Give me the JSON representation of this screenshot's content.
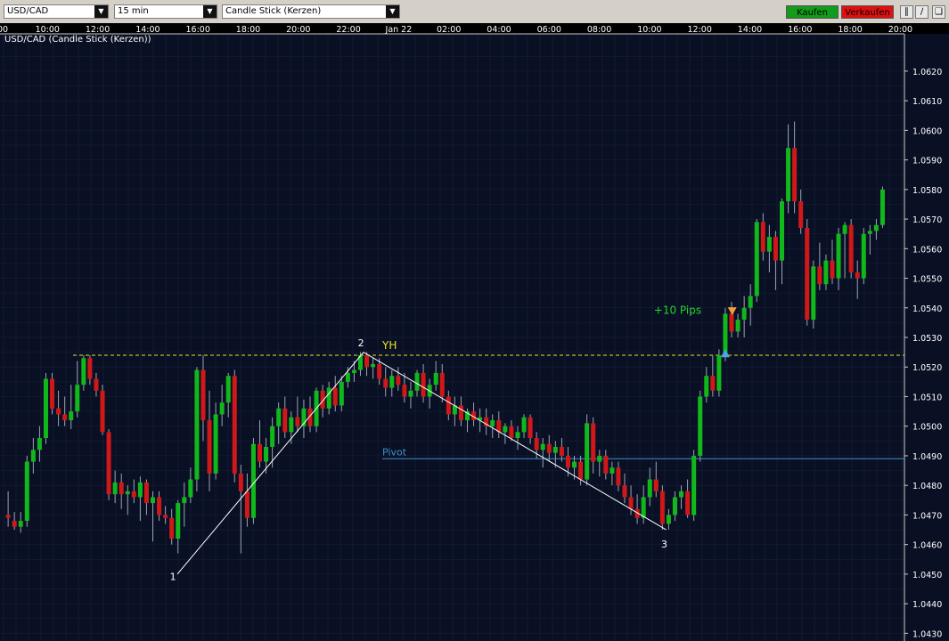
{
  "toolbar": {
    "symbol": "USD/CAD",
    "timeframe": "15 min",
    "chart_type": "Candle Stick (Kerzen)",
    "buy_label": "Kaufen",
    "sell_label": "Verkaufen"
  },
  "chart_title": "USD/CAD (Candle Stick (Kerzen))",
  "colors": {
    "background": "#0a1024",
    "grid": "#24304f",
    "up": "#11b81b",
    "down": "#d01818",
    "yh": "#e6e61e",
    "pivot": "#3c8fc8"
  },
  "chart_data": {
    "type": "candlestick",
    "symbol": "USD/CAD",
    "interval": "15 min",
    "x_ticks": [
      "00",
      "10:00",
      "12:00",
      "14:00",
      "16:00",
      "18:00",
      "20:00",
      "22:00",
      "Jan 22",
      "02:00",
      "04:00",
      "06:00",
      "08:00",
      "10:00",
      "12:00",
      "14:00",
      "16:00",
      "18:00",
      "20:00"
    ],
    "y_ticks": [
      "1.0620",
      "1.0610",
      "1.0600",
      "1.0590",
      "1.0580",
      "1.0570",
      "1.0560",
      "1.0550",
      "1.0540",
      "1.0530",
      "1.0520",
      "1.0510",
      "1.0500",
      "1.0490",
      "1.0480",
      "1.0470",
      "1.0460",
      "1.0450",
      "1.0440",
      "1.0430"
    ],
    "ylim": [
      1.0428,
      1.0629
    ],
    "levels": [
      {
        "name": "YH",
        "value": 1.0524,
        "style": "dashed"
      },
      {
        "name": "Pivot",
        "value": 1.0489,
        "style": "solid"
      }
    ],
    "annotations": [
      {
        "text": "1",
        "x": 26.5,
        "y": 1.0448
      },
      {
        "text": "2",
        "x": 56.4,
        "y": 1.0527
      },
      {
        "text": "3",
        "x": 104.6,
        "y": 1.0459
      },
      {
        "text": "+10 Pips",
        "x": 110.5,
        "y": 1.0538
      }
    ],
    "trendlines": [
      {
        "x1": 27.2,
        "y1": 1.045,
        "x2": 56.8,
        "y2": 1.0525
      },
      {
        "x1": 56.8,
        "y1": 1.0525,
        "x2": 104.9,
        "y2": 1.0465
      }
    ],
    "signals": [
      {
        "type": "buy-arrow",
        "x": 114.3,
        "y": 1.05245
      },
      {
        "type": "sell-arrow",
        "x": 115.4,
        "y": 1.0539
      }
    ],
    "candles": [
      {
        "x": 0.3,
        "o": 1.047,
        "h": 1.0478,
        "l": 1.0466,
        "c": 1.0469
      },
      {
        "x": 1.3,
        "o": 1.0468,
        "h": 1.0471,
        "l": 1.0465,
        "c": 1.0466
      },
      {
        "x": 2.3,
        "o": 1.0466,
        "h": 1.0471,
        "l": 1.0464,
        "c": 1.0468
      },
      {
        "x": 3.3,
        "o": 1.0468,
        "h": 1.049,
        "l": 1.0466,
        "c": 1.0488
      },
      {
        "x": 4.3,
        "o": 1.0488,
        "h": 1.0496,
        "l": 1.0484,
        "c": 1.0492
      },
      {
        "x": 5.3,
        "o": 1.0492,
        "h": 1.05,
        "l": 1.0488,
        "c": 1.0496
      },
      {
        "x": 6.3,
        "o": 1.0496,
        "h": 1.0518,
        "l": 1.0494,
        "c": 1.0516
      },
      {
        "x": 7.3,
        "o": 1.0516,
        "h": 1.0518,
        "l": 1.0504,
        "c": 1.0506
      },
      {
        "x": 8.3,
        "o": 1.0506,
        "h": 1.0512,
        "l": 1.05,
        "c": 1.0504
      },
      {
        "x": 9.3,
        "o": 1.0504,
        "h": 1.051,
        "l": 1.05,
        "c": 1.0502
      },
      {
        "x": 10.3,
        "o": 1.0502,
        "h": 1.0514,
        "l": 1.0499,
        "c": 1.0505
      },
      {
        "x": 11.3,
        "o": 1.0505,
        "h": 1.0522,
        "l": 1.0503,
        "c": 1.0514
      },
      {
        "x": 12.3,
        "o": 1.0514,
        "h": 1.0524,
        "l": 1.0512,
        "c": 1.0523
      },
      {
        "x": 13.3,
        "o": 1.0523,
        "h": 1.0524,
        "l": 1.0514,
        "c": 1.0516
      },
      {
        "x": 14.3,
        "o": 1.0516,
        "h": 1.0518,
        "l": 1.051,
        "c": 1.0512
      },
      {
        "x": 15.3,
        "o": 1.0512,
        "h": 1.0514,
        "l": 1.0497,
        "c": 1.0498
      },
      {
        "x": 16.3,
        "o": 1.0498,
        "h": 1.0499,
        "l": 1.0475,
        "c": 1.0477
      },
      {
        "x": 17.3,
        "o": 1.0477,
        "h": 1.0485,
        "l": 1.0474,
        "c": 1.0481
      },
      {
        "x": 18.3,
        "o": 1.0481,
        "h": 1.0484,
        "l": 1.0472,
        "c": 1.0477
      },
      {
        "x": 19.3,
        "o": 1.0477,
        "h": 1.048,
        "l": 1.047,
        "c": 1.0478
      },
      {
        "x": 20.3,
        "o": 1.0478,
        "h": 1.0482,
        "l": 1.0474,
        "c": 1.0476
      },
      {
        "x": 21.3,
        "o": 1.0476,
        "h": 1.0483,
        "l": 1.0468,
        "c": 1.0481
      },
      {
        "x": 22.3,
        "o": 1.0481,
        "h": 1.0482,
        "l": 1.047,
        "c": 1.0474
      },
      {
        "x": 23.3,
        "o": 1.0474,
        "h": 1.0478,
        "l": 1.0461,
        "c": 1.0476
      },
      {
        "x": 24.3,
        "o": 1.0476,
        "h": 1.0478,
        "l": 1.0468,
        "c": 1.047
      },
      {
        "x": 25.3,
        "o": 1.047,
        "h": 1.0473,
        "l": 1.0467,
        "c": 1.0469
      },
      {
        "x": 26.3,
        "o": 1.0469,
        "h": 1.0472,
        "l": 1.046,
        "c": 1.0462
      },
      {
        "x": 27.3,
        "o": 1.0462,
        "h": 1.0475,
        "l": 1.0457,
        "c": 1.0474
      },
      {
        "x": 28.3,
        "o": 1.0474,
        "h": 1.0481,
        "l": 1.0466,
        "c": 1.0476
      },
      {
        "x": 29.3,
        "o": 1.0476,
        "h": 1.0486,
        "l": 1.0474,
        "c": 1.0482
      },
      {
        "x": 30.3,
        "o": 1.0482,
        "h": 1.052,
        "l": 1.0478,
        "c": 1.0519
      },
      {
        "x": 31.3,
        "o": 1.0519,
        "h": 1.0524,
        "l": 1.0495,
        "c": 1.0502
      },
      {
        "x": 32.3,
        "o": 1.0502,
        "h": 1.0512,
        "l": 1.0478,
        "c": 1.0484
      },
      {
        "x": 33.3,
        "o": 1.0484,
        "h": 1.0508,
        "l": 1.0482,
        "c": 1.0504
      },
      {
        "x": 34.3,
        "o": 1.0504,
        "h": 1.0514,
        "l": 1.05,
        "c": 1.0508
      },
      {
        "x": 35.3,
        "o": 1.0508,
        "h": 1.0518,
        "l": 1.0503,
        "c": 1.0517
      },
      {
        "x": 36.3,
        "o": 1.0517,
        "h": 1.0519,
        "l": 1.0481,
        "c": 1.0484
      },
      {
        "x": 37.3,
        "o": 1.0484,
        "h": 1.0487,
        "l": 1.0457,
        "c": 1.0478
      },
      {
        "x": 38.3,
        "o": 1.0478,
        "h": 1.0484,
        "l": 1.0466,
        "c": 1.0469
      },
      {
        "x": 39.3,
        "o": 1.0469,
        "h": 1.0496,
        "l": 1.0467,
        "c": 1.0494
      },
      {
        "x": 40.3,
        "o": 1.0494,
        "h": 1.0502,
        "l": 1.0486,
        "c": 1.0488
      },
      {
        "x": 41.3,
        "o": 1.0488,
        "h": 1.0496,
        "l": 1.0484,
        "c": 1.0493
      },
      {
        "x": 42.3,
        "o": 1.0493,
        "h": 1.0503,
        "l": 1.0486,
        "c": 1.05
      },
      {
        "x": 43.3,
        "o": 1.05,
        "h": 1.0508,
        "l": 1.0494,
        "c": 1.0506
      },
      {
        "x": 44.3,
        "o": 1.0506,
        "h": 1.051,
        "l": 1.0496,
        "c": 1.0498
      },
      {
        "x": 45.3,
        "o": 1.0498,
        "h": 1.0505,
        "l": 1.0494,
        "c": 1.0503
      },
      {
        "x": 46.3,
        "o": 1.0503,
        "h": 1.051,
        "l": 1.0498,
        "c": 1.05
      },
      {
        "x": 47.3,
        "o": 1.05,
        "h": 1.0509,
        "l": 1.0496,
        "c": 1.0506
      },
      {
        "x": 48.3,
        "o": 1.0506,
        "h": 1.051,
        "l": 1.0498,
        "c": 1.05
      },
      {
        "x": 49.3,
        "o": 1.05,
        "h": 1.0513,
        "l": 1.0498,
        "c": 1.0512
      },
      {
        "x": 50.3,
        "o": 1.0512,
        "h": 1.0514,
        "l": 1.0503,
        "c": 1.0506
      },
      {
        "x": 51.3,
        "o": 1.0506,
        "h": 1.0515,
        "l": 1.0504,
        "c": 1.0513
      },
      {
        "x": 52.3,
        "o": 1.0513,
        "h": 1.0517,
        "l": 1.0505,
        "c": 1.0507
      },
      {
        "x": 53.3,
        "o": 1.0507,
        "h": 1.0517,
        "l": 1.0505,
        "c": 1.0515
      },
      {
        "x": 54.3,
        "o": 1.0515,
        "h": 1.052,
        "l": 1.0513,
        "c": 1.0518
      },
      {
        "x": 55.3,
        "o": 1.0518,
        "h": 1.0522,
        "l": 1.0515,
        "c": 1.0519
      },
      {
        "x": 56.3,
        "o": 1.0519,
        "h": 1.0525,
        "l": 1.0517,
        "c": 1.0524
      },
      {
        "x": 57.3,
        "o": 1.0524,
        "h": 1.0525,
        "l": 1.0517,
        "c": 1.052
      },
      {
        "x": 58.3,
        "o": 1.052,
        "h": 1.0523,
        "l": 1.0516,
        "c": 1.0521
      },
      {
        "x": 59.3,
        "o": 1.0521,
        "h": 1.0523,
        "l": 1.0514,
        "c": 1.0516
      },
      {
        "x": 60.3,
        "o": 1.0516,
        "h": 1.052,
        "l": 1.051,
        "c": 1.0513
      },
      {
        "x": 61.3,
        "o": 1.0513,
        "h": 1.0519,
        "l": 1.051,
        "c": 1.0517
      },
      {
        "x": 62.3,
        "o": 1.0517,
        "h": 1.052,
        "l": 1.0512,
        "c": 1.0514
      },
      {
        "x": 63.3,
        "o": 1.0514,
        "h": 1.0518,
        "l": 1.0508,
        "c": 1.051
      },
      {
        "x": 64.3,
        "o": 1.051,
        "h": 1.0515,
        "l": 1.0506,
        "c": 1.0512
      },
      {
        "x": 65.3,
        "o": 1.0512,
        "h": 1.0519,
        "l": 1.051,
        "c": 1.0518
      },
      {
        "x": 66.3,
        "o": 1.0518,
        "h": 1.0521,
        "l": 1.0508,
        "c": 1.051
      },
      {
        "x": 67.3,
        "o": 1.051,
        "h": 1.0516,
        "l": 1.0506,
        "c": 1.0514
      },
      {
        "x": 68.3,
        "o": 1.0514,
        "h": 1.0522,
        "l": 1.0512,
        "c": 1.0518
      },
      {
        "x": 69.3,
        "o": 1.0518,
        "h": 1.0521,
        "l": 1.0508,
        "c": 1.051
      },
      {
        "x": 70.3,
        "o": 1.051,
        "h": 1.0512,
        "l": 1.0502,
        "c": 1.0504
      },
      {
        "x": 71.3,
        "o": 1.0504,
        "h": 1.051,
        "l": 1.05,
        "c": 1.0507
      },
      {
        "x": 72.3,
        "o": 1.0507,
        "h": 1.051,
        "l": 1.05,
        "c": 1.0502
      },
      {
        "x": 73.3,
        "o": 1.0502,
        "h": 1.0506,
        "l": 1.0498,
        "c": 1.0505
      },
      {
        "x": 74.3,
        "o": 1.0505,
        "h": 1.0508,
        "l": 1.05,
        "c": 1.0502
      },
      {
        "x": 75.3,
        "o": 1.0502,
        "h": 1.0506,
        "l": 1.0498,
        "c": 1.0503
      },
      {
        "x": 76.3,
        "o": 1.0503,
        "h": 1.0506,
        "l": 1.0497,
        "c": 1.05
      },
      {
        "x": 77.3,
        "o": 1.05,
        "h": 1.0504,
        "l": 1.0496,
        "c": 1.0502
      },
      {
        "x": 78.3,
        "o": 1.0502,
        "h": 1.0505,
        "l": 1.0496,
        "c": 1.0498
      },
      {
        "x": 79.3,
        "o": 1.0498,
        "h": 1.0501,
        "l": 1.0494,
        "c": 1.05
      },
      {
        "x": 80.3,
        "o": 1.05,
        "h": 1.0502,
        "l": 1.0495,
        "c": 1.0496
      },
      {
        "x": 81.3,
        "o": 1.0496,
        "h": 1.05,
        "l": 1.0492,
        "c": 1.0498
      },
      {
        "x": 82.3,
        "o": 1.0498,
        "h": 1.0504,
        "l": 1.0496,
        "c": 1.0503
      },
      {
        "x": 83.3,
        "o": 1.0503,
        "h": 1.0504,
        "l": 1.0494,
        "c": 1.0496
      },
      {
        "x": 84.3,
        "o": 1.0496,
        "h": 1.0498,
        "l": 1.0489,
        "c": 1.0492
      },
      {
        "x": 85.3,
        "o": 1.0492,
        "h": 1.0496,
        "l": 1.0486,
        "c": 1.0494
      },
      {
        "x": 86.3,
        "o": 1.0494,
        "h": 1.0497,
        "l": 1.0488,
        "c": 1.0491
      },
      {
        "x": 87.3,
        "o": 1.0491,
        "h": 1.0495,
        "l": 1.0486,
        "c": 1.0493
      },
      {
        "x": 88.3,
        "o": 1.0493,
        "h": 1.0496,
        "l": 1.0488,
        "c": 1.049
      },
      {
        "x": 89.3,
        "o": 1.049,
        "h": 1.0493,
        "l": 1.0483,
        "c": 1.0486
      },
      {
        "x": 90.3,
        "o": 1.0486,
        "h": 1.049,
        "l": 1.0482,
        "c": 1.0488
      },
      {
        "x": 91.3,
        "o": 1.0488,
        "h": 1.049,
        "l": 1.048,
        "c": 1.0482
      },
      {
        "x": 92.3,
        "o": 1.0482,
        "h": 1.0504,
        "l": 1.048,
        "c": 1.0501
      },
      {
        "x": 93.3,
        "o": 1.0501,
        "h": 1.0503,
        "l": 1.0484,
        "c": 1.0488
      },
      {
        "x": 94.3,
        "o": 1.0488,
        "h": 1.0492,
        "l": 1.0483,
        "c": 1.049
      },
      {
        "x": 95.3,
        "o": 1.049,
        "h": 1.0492,
        "l": 1.0482,
        "c": 1.0484
      },
      {
        "x": 96.3,
        "o": 1.0484,
        "h": 1.0488,
        "l": 1.048,
        "c": 1.0486
      },
      {
        "x": 97.3,
        "o": 1.0486,
        "h": 1.0488,
        "l": 1.0478,
        "c": 1.048
      },
      {
        "x": 98.3,
        "o": 1.048,
        "h": 1.0484,
        "l": 1.0474,
        "c": 1.0476
      },
      {
        "x": 99.3,
        "o": 1.0476,
        "h": 1.048,
        "l": 1.047,
        "c": 1.0472
      },
      {
        "x": 100.3,
        "o": 1.0472,
        "h": 1.0477,
        "l": 1.0467,
        "c": 1.0469
      },
      {
        "x": 101.3,
        "o": 1.0469,
        "h": 1.048,
        "l": 1.0467,
        "c": 1.0476
      },
      {
        "x": 102.3,
        "o": 1.0476,
        "h": 1.0486,
        "l": 1.0473,
        "c": 1.0482
      },
      {
        "x": 103.3,
        "o": 1.0482,
        "h": 1.0488,
        "l": 1.0476,
        "c": 1.0478
      },
      {
        "x": 104.3,
        "o": 1.0478,
        "h": 1.048,
        "l": 1.0465,
        "c": 1.0467
      },
      {
        "x": 105.3,
        "o": 1.0467,
        "h": 1.0472,
        "l": 1.0465,
        "c": 1.047
      },
      {
        "x": 106.3,
        "o": 1.047,
        "h": 1.0478,
        "l": 1.0468,
        "c": 1.0476
      },
      {
        "x": 107.3,
        "o": 1.0476,
        "h": 1.048,
        "l": 1.0472,
        "c": 1.0478
      },
      {
        "x": 108.3,
        "o": 1.0478,
        "h": 1.0482,
        "l": 1.0469,
        "c": 1.047
      },
      {
        "x": 109.3,
        "o": 1.047,
        "h": 1.0492,
        "l": 1.0468,
        "c": 1.049
      },
      {
        "x": 110.3,
        "o": 1.049,
        "h": 1.0512,
        "l": 1.0488,
        "c": 1.051
      },
      {
        "x": 111.3,
        "o": 1.051,
        "h": 1.052,
        "l": 1.0508,
        "c": 1.0517
      },
      {
        "x": 112.3,
        "o": 1.0517,
        "h": 1.0524,
        "l": 1.051,
        "c": 1.0512
      },
      {
        "x": 113.3,
        "o": 1.0512,
        "h": 1.0526,
        "l": 1.051,
        "c": 1.0524
      },
      {
        "x": 114.3,
        "o": 1.0524,
        "h": 1.054,
        "l": 1.0522,
        "c": 1.0538
      },
      {
        "x": 115.3,
        "o": 1.0538,
        "h": 1.0542,
        "l": 1.053,
        "c": 1.0532
      },
      {
        "x": 116.3,
        "o": 1.0532,
        "h": 1.0538,
        "l": 1.053,
        "c": 1.0536
      },
      {
        "x": 117.3,
        "o": 1.0536,
        "h": 1.0544,
        "l": 1.053,
        "c": 1.054
      },
      {
        "x": 118.3,
        "o": 1.054,
        "h": 1.0548,
        "l": 1.0534,
        "c": 1.0544
      },
      {
        "x": 119.3,
        "o": 1.0544,
        "h": 1.057,
        "l": 1.0542,
        "c": 1.0569
      },
      {
        "x": 120.3,
        "o": 1.0569,
        "h": 1.0572,
        "l": 1.0556,
        "c": 1.0559
      },
      {
        "x": 121.3,
        "o": 1.0559,
        "h": 1.0568,
        "l": 1.0552,
        "c": 1.0564
      },
      {
        "x": 122.3,
        "o": 1.0564,
        "h": 1.0566,
        "l": 1.0546,
        "c": 1.0556
      },
      {
        "x": 123.3,
        "o": 1.0556,
        "h": 1.0577,
        "l": 1.0548,
        "c": 1.0576
      },
      {
        "x": 124.3,
        "o": 1.0576,
        "h": 1.0602,
        "l": 1.0572,
        "c": 1.0594
      },
      {
        "x": 125.3,
        "o": 1.0594,
        "h": 1.0603,
        "l": 1.0572,
        "c": 1.0576
      },
      {
        "x": 126.3,
        "o": 1.0576,
        "h": 1.058,
        "l": 1.0565,
        "c": 1.0567
      },
      {
        "x": 127.3,
        "o": 1.0567,
        "h": 1.057,
        "l": 1.0534,
        "c": 1.0536
      },
      {
        "x": 128.3,
        "o": 1.0536,
        "h": 1.0556,
        "l": 1.0533,
        "c": 1.0554
      },
      {
        "x": 129.3,
        "o": 1.0554,
        "h": 1.0562,
        "l": 1.0546,
        "c": 1.0548
      },
      {
        "x": 130.3,
        "o": 1.0548,
        "h": 1.0558,
        "l": 1.0546,
        "c": 1.0556
      },
      {
        "x": 131.3,
        "o": 1.0556,
        "h": 1.0563,
        "l": 1.0548,
        "c": 1.055
      },
      {
        "x": 132.3,
        "o": 1.055,
        "h": 1.0567,
        "l": 1.0546,
        "c": 1.0565
      },
      {
        "x": 133.3,
        "o": 1.0565,
        "h": 1.0569,
        "l": 1.055,
        "c": 1.0568
      },
      {
        "x": 134.3,
        "o": 1.0568,
        "h": 1.057,
        "l": 1.055,
        "c": 1.0552
      },
      {
        "x": 135.3,
        "o": 1.0552,
        "h": 1.0556,
        "l": 1.0543,
        "c": 1.055
      },
      {
        "x": 136.3,
        "o": 1.055,
        "h": 1.0567,
        "l": 1.0548,
        "c": 1.0565
      },
      {
        "x": 137.3,
        "o": 1.0565,
        "h": 1.0568,
        "l": 1.0558,
        "c": 1.0566
      },
      {
        "x": 138.3,
        "o": 1.0566,
        "h": 1.057,
        "l": 1.0563,
        "c": 1.0568
      },
      {
        "x": 139.3,
        "o": 1.0568,
        "h": 1.0581,
        "l": 1.0567,
        "c": 1.058
      }
    ]
  }
}
